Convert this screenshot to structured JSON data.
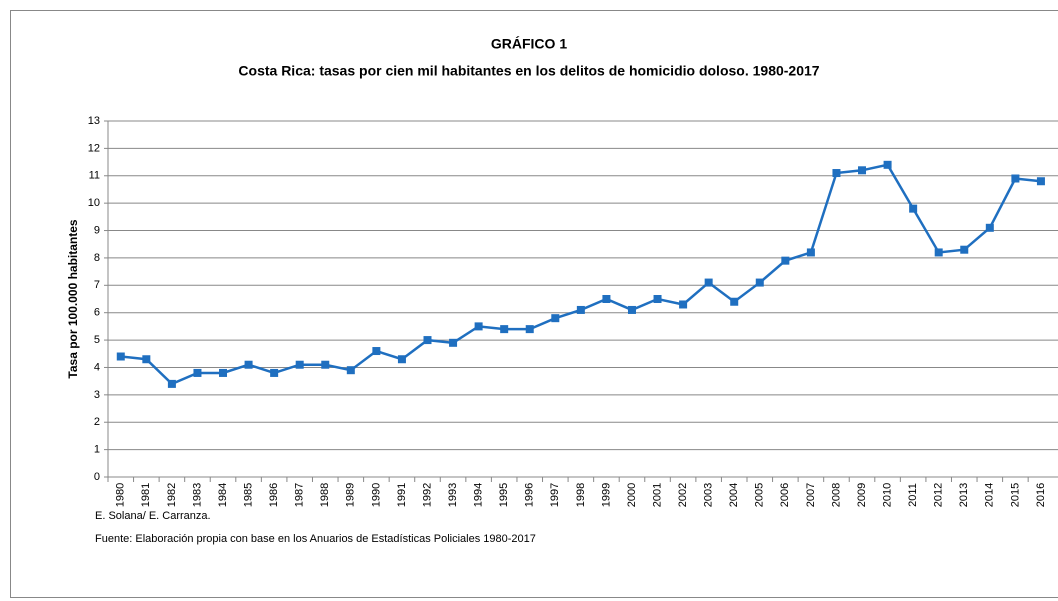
{
  "chart_data": {
    "type": "line",
    "title": "GRÁFICO 1",
    "subtitle": "Costa Rica: tasas por cien  mil habitantes en los delitos de homicidio doloso. 1980-2017",
    "y_label": "Tasa por 100.000 habitantes",
    "categories": [
      "1980",
      "1981",
      "1982",
      "1983",
      "1984",
      "1985",
      "1986",
      "1987",
      "1988",
      "1989",
      "1990",
      "1991",
      "1992",
      "1993",
      "1994",
      "1995",
      "1996",
      "1997",
      "1998",
      "1999",
      "2000",
      "2001",
      "2002",
      "2003",
      "2004",
      "2005",
      "2006",
      "2007",
      "2008",
      "2009",
      "2010",
      "2011",
      "2012",
      "2013",
      "2014",
      "2015",
      "2016"
    ],
    "series": [
      {
        "name": "Tasa",
        "color": "#1f6fc0",
        "values": [
          4.4,
          4.3,
          3.4,
          3.8,
          3.8,
          4.1,
          3.8,
          4.1,
          4.1,
          3.9,
          4.6,
          4.3,
          5.0,
          4.9,
          5.5,
          5.4,
          5.4,
          5.8,
          6.1,
          6.5,
          6.1,
          6.5,
          6.3,
          7.1,
          6.4,
          7.1,
          7.9,
          8.2,
          11.1,
          11.2,
          11.4,
          9.8,
          8.2,
          8.3,
          9.1,
          10.9,
          10.8
        ]
      }
    ],
    "ylim": [
      0,
      13
    ],
    "yticks": [
      0,
      1,
      2,
      3,
      4,
      5,
      6,
      7,
      8,
      9,
      10,
      11,
      12,
      13
    ],
    "grid": true,
    "notes": [
      "E. Solana/ E. Carranza.",
      "Fuente:  Elaboración propia con base en los Anuarios de Estadísticas Policiales 1980-2017"
    ]
  }
}
